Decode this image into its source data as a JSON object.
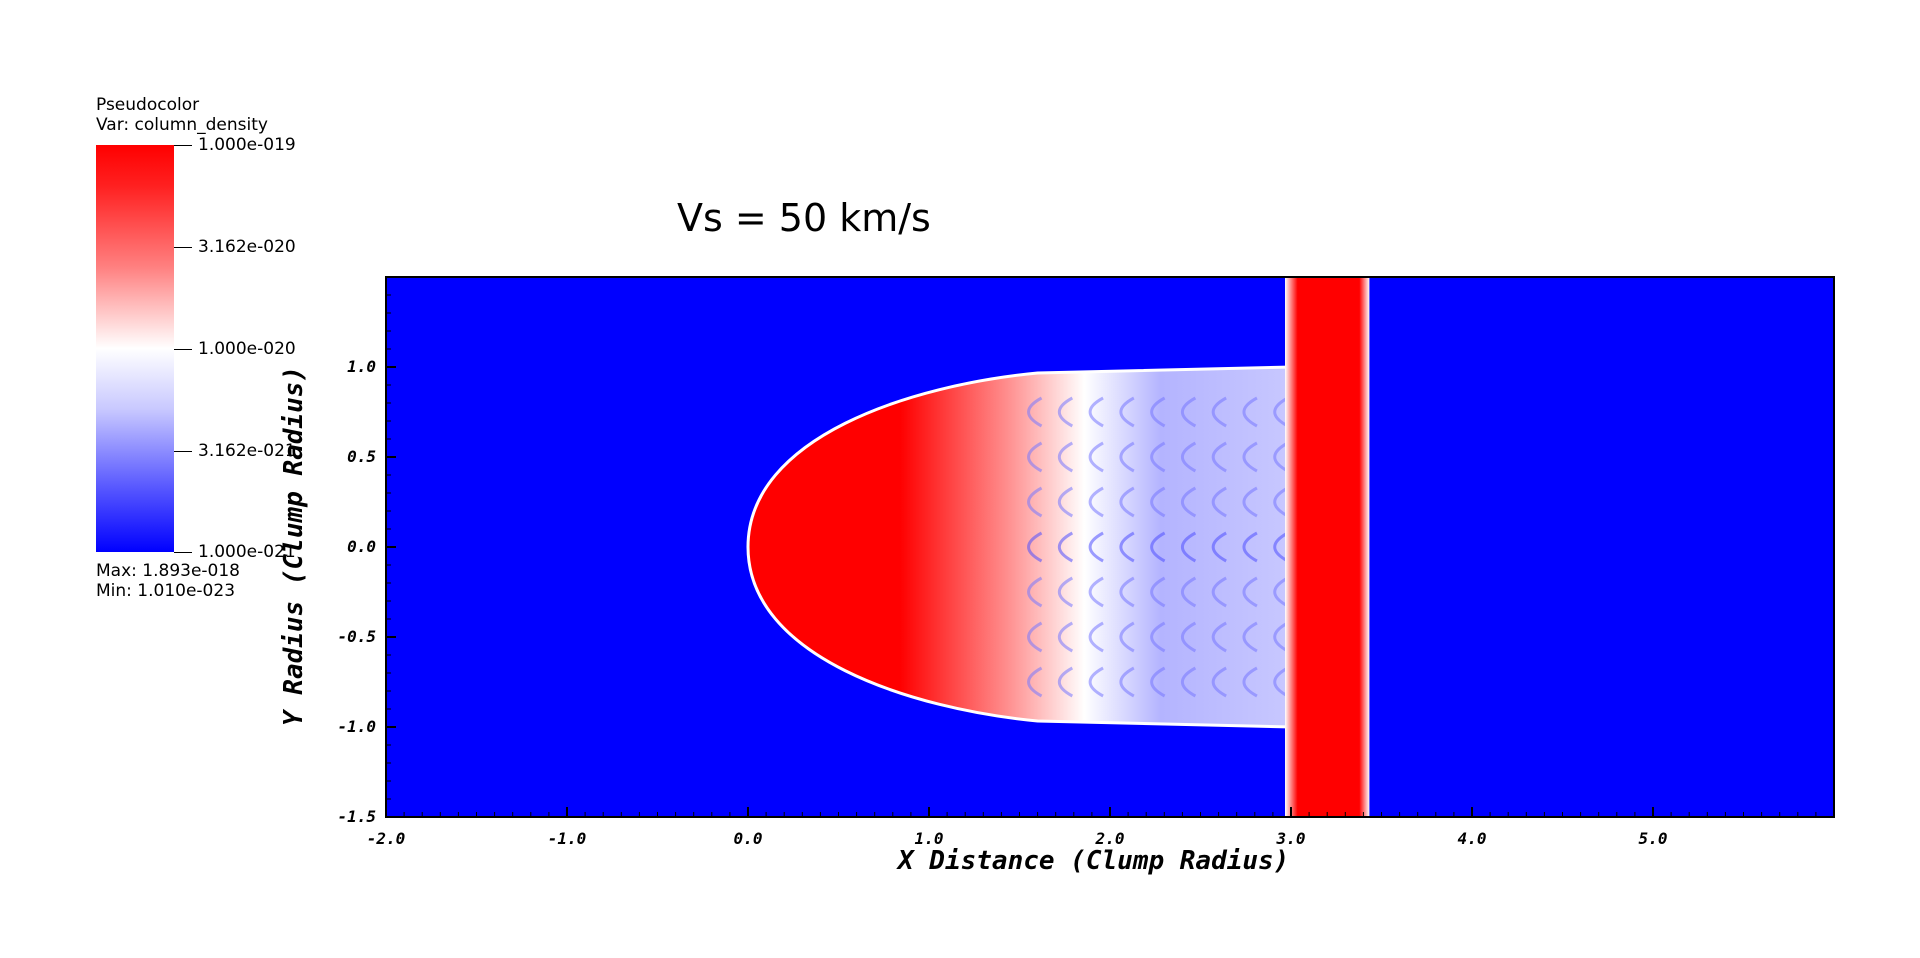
{
  "legend": {
    "plot_type": "Pseudocolor",
    "var_label": "Var: column_density",
    "ticks": [
      "1.000e-019",
      "3.162e-020",
      "1.000e-020",
      "3.162e-021",
      "1.000e-021"
    ],
    "max_label": "Max:  1.893e-018",
    "min_label": "Min:  1.010e-023",
    "colors": [
      "#ff0000",
      "#ffffff",
      "#0000ff"
    ]
  },
  "chart_data": {
    "type": "heatmap",
    "title": "Vs = 50 km/s",
    "xlabel": "X Distance (Clump Radius)",
    "ylabel": "Y Radius (Clump Radius)",
    "xlim": [
      -2.0,
      6.0
    ],
    "ylim": [
      -1.5,
      1.5
    ],
    "xticks": [
      "-2.0",
      "-1.0",
      "0.0",
      "1.0",
      "2.0",
      "3.0",
      "4.0",
      "5.0"
    ],
    "yticks": [
      "-1.5",
      "-1.0",
      "-0.5",
      "0.0",
      "0.5",
      "1.0"
    ],
    "colormap": [
      "#ff0000",
      "#ffffff",
      "#0000ff"
    ],
    "background_color": "#0000ff",
    "features": {
      "shock_sheet_x": [
        3.0,
        3.4
      ],
      "clump_tip_x": 0.0,
      "clump_half_width": 1.0,
      "clump_tail_end_x": 3.0
    }
  }
}
